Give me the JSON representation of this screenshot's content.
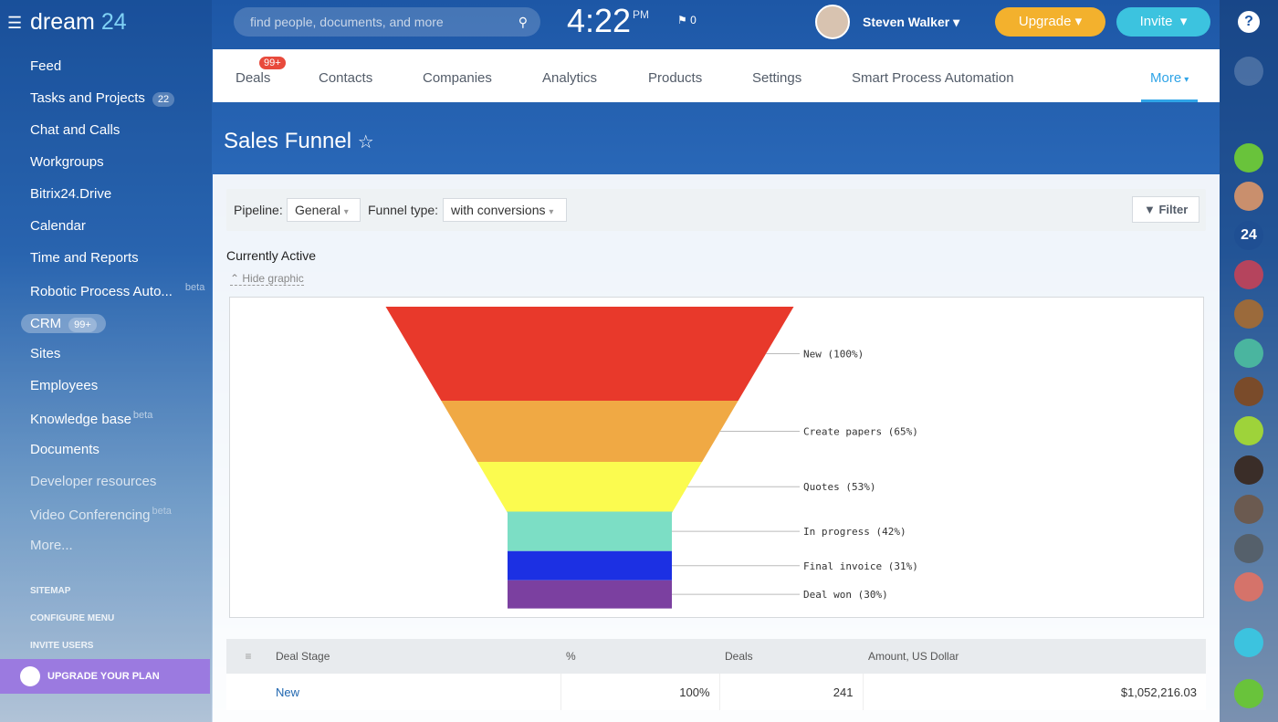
{
  "header": {
    "logo": "dream",
    "logo_num": "24",
    "search_placeholder": "find people, documents, and more",
    "time": "4:22",
    "ampm": "PM",
    "flags": "0",
    "user": "Steven Walker",
    "upgrade": "Upgrade",
    "invite": "Invite"
  },
  "sidebar": {
    "menu": [
      {
        "label": "Feed"
      },
      {
        "label": "Tasks and Projects",
        "counter": "22"
      },
      {
        "label": "Chat and Calls"
      },
      {
        "label": "Workgroups"
      },
      {
        "label": "Bitrix24.Drive"
      },
      {
        "label": "Calendar"
      },
      {
        "label": "Time and Reports"
      },
      {
        "label": "Robotic Process Auto...",
        "tag": "beta"
      },
      {
        "label": "CRM",
        "counter": "99+"
      },
      {
        "label": "Sites"
      },
      {
        "label": "Employees"
      },
      {
        "label": "Knowledge base",
        "tag": "beta"
      },
      {
        "label": "Documents"
      },
      {
        "label": "Developer resources"
      },
      {
        "label": "Video Conferencing",
        "tag": "beta"
      },
      {
        "label": "More..."
      }
    ],
    "links": [
      "SITEMAP",
      "CONFIGURE MENU",
      "INVITE USERS"
    ],
    "upgrade_plan": "UPGRADE YOUR PLAN"
  },
  "tabs": [
    {
      "label": "Deals",
      "counter": "99+"
    },
    {
      "label": "Contacts"
    },
    {
      "label": "Companies"
    },
    {
      "label": "Analytics"
    },
    {
      "label": "Products"
    },
    {
      "label": "Settings"
    },
    {
      "label": "Smart Process Automation"
    },
    {
      "label": "More"
    }
  ],
  "page": {
    "title": "Sales Funnel",
    "pipeline_label": "Pipeline:",
    "pipeline": "General",
    "funnel_type_label": "Funnel type:",
    "funnel_type": "with conversions",
    "filter": "Filter",
    "section": "Currently Active",
    "hide_graphic": "Hide graphic"
  },
  "chart_data": {
    "type": "funnel",
    "values": [
      100,
      65,
      53,
      42,
      31,
      30
    ],
    "value_labels": [
      "New (100%)",
      "Create papers (65%)",
      "Quotes (53%)",
      "In progress (42%)",
      "Final invoice (31%)",
      "Deal won (30%)"
    ],
    "colors": [
      "#e8392b",
      "#f0a944",
      "#fbfb4f",
      "#7cdec5",
      "#1c30e3",
      "#7b40a0"
    ]
  },
  "table": {
    "columns": [
      "Deal Stage",
      "%",
      "Deals",
      "Amount, US Dollar"
    ],
    "rows": [
      [
        "New",
        "100%",
        "241",
        "$1,052,216.03"
      ]
    ]
  },
  "right_bar": {
    "badge": "24"
  }
}
